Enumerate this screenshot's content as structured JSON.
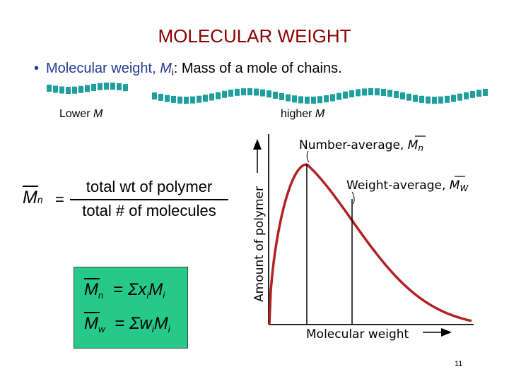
{
  "title": "MOLECULAR WEIGHT",
  "bullet": {
    "term": "Molecular weight, ",
    "symbol": "M",
    "symbol_sub": "i",
    "definition": ":  Mass of a mole of chains."
  },
  "chain_labels": {
    "lower_prefix": "Lower ",
    "lower_sym": "M",
    "higher_prefix": "higher ",
    "higher_sym": "M"
  },
  "mn_formula": {
    "symbol": "M",
    "sub": "n",
    "numerator": "total wt of polymer",
    "denominator": "total # of molecules"
  },
  "formula_box": {
    "color": "#26c987",
    "row1": {
      "sym": "M",
      "sub": "n",
      "rhs_a": "Σx",
      "rhs_sub": "i",
      "rhs_b": "M",
      "rhs_sub2": "i"
    },
    "row2": {
      "sym": "M",
      "sub": "w",
      "rhs_a": "Σw",
      "rhs_sub": "i",
      "rhs_b": "M",
      "rhs_sub2": "i"
    }
  },
  "distribution_chart": {
    "ylabel": "Amount of polymer",
    "xlabel": "Molecular weight",
    "curve_color": "#b22222",
    "number_average": {
      "label": "Number-average, ",
      "sym": "M",
      "sub": "n"
    },
    "weight_average": {
      "label": "Weight-average, ",
      "sym": "M",
      "sub": "W"
    }
  },
  "page_number": "11"
}
